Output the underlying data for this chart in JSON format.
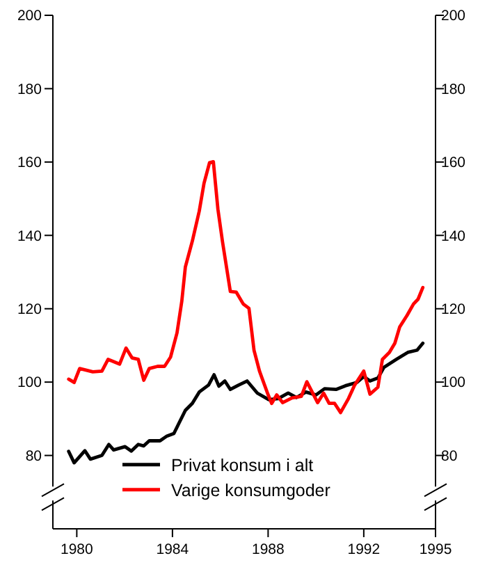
{
  "chart_data": {
    "type": "line",
    "xlim": [
      1979,
      1995
    ],
    "xticks": [
      1980,
      1984,
      1988,
      1992,
      1995
    ],
    "ylim": [
      60,
      200
    ],
    "yticks": [
      80,
      100,
      120,
      140,
      160,
      180,
      200
    ],
    "y2lim": [
      60,
      200
    ],
    "y2ticks": [
      80,
      100,
      120,
      140,
      160,
      180,
      200
    ],
    "legend": "bottom",
    "grid": false,
    "series": [
      {
        "name": "Privat konsum i alt",
        "color": "#000000",
        "x": [
          1979.66,
          1979.89,
          1980.34,
          1980.57,
          1981.05,
          1981.34,
          1981.54,
          1982.02,
          1982.28,
          1982.57,
          1982.8,
          1983.03,
          1983.48,
          1983.77,
          1984.06,
          1984.25,
          1984.54,
          1984.83,
          1985.12,
          1985.51,
          1985.74,
          1985.94,
          1986.19,
          1986.42,
          1986.77,
          1987.12,
          1987.55,
          1988.03,
          1988.42,
          1988.84,
          1989.19,
          1989.58,
          1990.0,
          1990.36,
          1990.84,
          1991.23,
          1991.71,
          1992.0,
          1992.26,
          1992.59,
          1992.84,
          1993.36,
          1993.84,
          1994.23,
          1994.47
        ],
        "values": [
          81.1,
          78,
          81.3,
          79,
          80,
          83,
          81.5,
          82.4,
          81.2,
          83,
          82.6,
          84,
          84,
          85.3,
          86,
          88.5,
          92.3,
          94.2,
          97.3,
          99.2,
          102,
          98.9,
          100.3,
          98,
          99.2,
          100.3,
          97,
          95.2,
          95.5,
          97,
          95.8,
          97.3,
          96.5,
          98.2,
          98,
          99,
          99.9,
          101.5,
          100.3,
          101.1,
          104,
          106.2,
          108.1,
          108.7,
          110.6
        ]
      },
      {
        "name": "Varige konsumgoder",
        "color": "#ff0000",
        "x": [
          1979.66,
          1979.89,
          1980.12,
          1980.67,
          1981.05,
          1981.31,
          1981.79,
          1982.06,
          1982.31,
          1982.57,
          1982.8,
          1983.03,
          1983.38,
          1983.67,
          1983.92,
          1984.19,
          1984.39,
          1984.54,
          1984.83,
          1985.12,
          1985.32,
          1985.55,
          1985.71,
          1985.9,
          1986.09,
          1986.42,
          1986.67,
          1986.96,
          1987.2,
          1987.41,
          1987.64,
          1987.99,
          1988.15,
          1988.36,
          1988.61,
          1989.0,
          1989.39,
          1989.62,
          1990.07,
          1990.32,
          1990.55,
          1990.78,
          1991.03,
          1991.36,
          1991.62,
          1992.0,
          1992.26,
          1992.59,
          1992.78,
          1993.07,
          1993.3,
          1993.5,
          1993.81,
          1994.08,
          1994.27,
          1994.47
        ],
        "values": [
          100.8,
          99.9,
          103.7,
          102.8,
          103,
          106.2,
          104.9,
          109.3,
          106.6,
          106.2,
          100.5,
          103.7,
          104.3,
          104.3,
          106.8,
          113.4,
          122,
          131.4,
          138.4,
          146.6,
          154.2,
          159.8,
          160.1,
          147.2,
          138.4,
          124.7,
          124.5,
          121.3,
          120.1,
          108.7,
          103,
          96.7,
          94.2,
          96.5,
          94.4,
          95.7,
          96.1,
          100.1,
          94.4,
          97,
          94.2,
          94.2,
          91.7,
          95.5,
          99.2,
          103,
          96.7,
          98.6,
          106.2,
          108.1,
          110.6,
          115,
          118.2,
          121.3,
          122.6,
          125.8
        ]
      }
    ]
  }
}
